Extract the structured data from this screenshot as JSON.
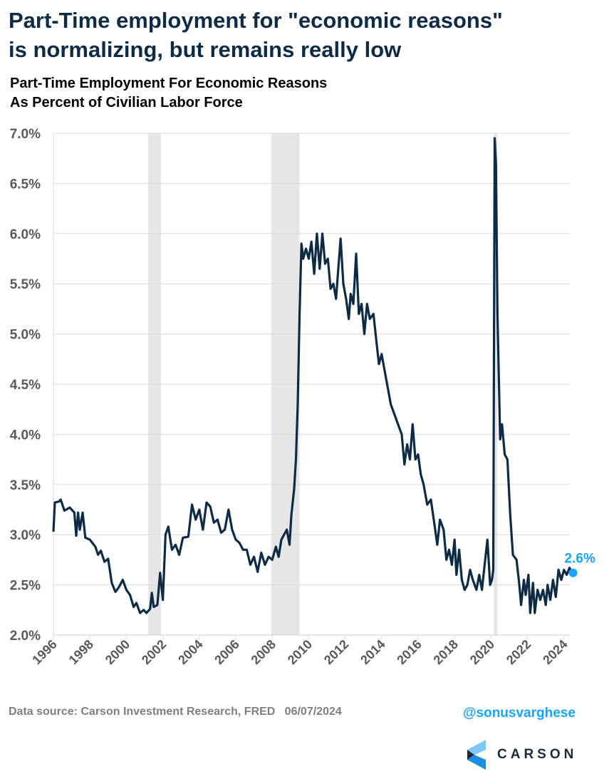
{
  "header": {
    "title_line1": "Part-Time employment for \"economic reasons\"",
    "title_line2": "is normalizing, but remains really low"
  },
  "footer": {
    "source": "Data source: Carson Investment Research, FRED   06/07/2024",
    "handle": "@sonusvarghese",
    "logo_text": "CARSON"
  },
  "colors": {
    "line": "#0d2b45",
    "accent": "#1aa3ff",
    "recession": "#e6e6e6",
    "grid": "#d9d9d9"
  },
  "chart_data": {
    "type": "line",
    "title_line1": "Part-Time Employment For Economic Reasons",
    "title_line2": "As Percent of Civilian Labor Force",
    "ylim": [
      2.0,
      7.0
    ],
    "xlim": [
      1996,
      2024.5
    ],
    "yticks": [
      "2.0%",
      "2.5%",
      "3.0%",
      "3.5%",
      "4.0%",
      "4.5%",
      "5.0%",
      "5.5%",
      "6.0%",
      "6.5%",
      "7.0%"
    ],
    "ytick_values": [
      2.0,
      2.5,
      3.0,
      3.5,
      4.0,
      4.5,
      5.0,
      5.5,
      6.0,
      6.5,
      7.0
    ],
    "xticks": [
      "1996",
      "1998",
      "2000",
      "2002",
      "2004",
      "2006",
      "2008",
      "2010",
      "2012",
      "2014",
      "2016",
      "2018",
      "2020",
      "2022",
      "2024"
    ],
    "grid": "horizontal",
    "recessions": [
      [
        2001.2,
        2001.9
      ],
      [
        2007.95,
        2009.5
      ],
      [
        2020.15,
        2020.35
      ]
    ],
    "last_label": "2.6%",
    "last_value": 2.62,
    "points": [
      [
        1996.0,
        3.03
      ],
      [
        1996.08,
        3.32
      ],
      [
        1996.3,
        3.33
      ],
      [
        1996.4,
        3.35
      ],
      [
        1996.6,
        3.24
      ],
      [
        1996.9,
        3.27
      ],
      [
        1997.15,
        3.22
      ],
      [
        1997.25,
        2.99
      ],
      [
        1997.35,
        3.22
      ],
      [
        1997.45,
        3.05
      ],
      [
        1997.6,
        3.22
      ],
      [
        1997.75,
        2.97
      ],
      [
        1998.0,
        2.95
      ],
      [
        1998.3,
        2.88
      ],
      [
        1998.45,
        2.8
      ],
      [
        1998.6,
        2.84
      ],
      [
        1998.8,
        2.73
      ],
      [
        1999.0,
        2.76
      ],
      [
        1999.2,
        2.52
      ],
      [
        1999.4,
        2.43
      ],
      [
        1999.6,
        2.48
      ],
      [
        1999.8,
        2.55
      ],
      [
        2000.0,
        2.45
      ],
      [
        2000.2,
        2.4
      ],
      [
        2000.4,
        2.28
      ],
      [
        2000.55,
        2.32
      ],
      [
        2000.75,
        2.22
      ],
      [
        2000.95,
        2.25
      ],
      [
        2001.1,
        2.22
      ],
      [
        2001.3,
        2.26
      ],
      [
        2001.4,
        2.42
      ],
      [
        2001.5,
        2.28
      ],
      [
        2001.7,
        2.3
      ],
      [
        2001.85,
        2.62
      ],
      [
        2002.0,
        2.35
      ],
      [
        2002.15,
        3.0
      ],
      [
        2002.3,
        3.08
      ],
      [
        2002.5,
        2.85
      ],
      [
        2002.7,
        2.9
      ],
      [
        2002.9,
        2.8
      ],
      [
        2003.1,
        2.97
      ],
      [
        2003.4,
        2.98
      ],
      [
        2003.6,
        3.3
      ],
      [
        2003.8,
        3.15
      ],
      [
        2004.0,
        3.25
      ],
      [
        2004.2,
        3.05
      ],
      [
        2004.4,
        3.32
      ],
      [
        2004.6,
        3.28
      ],
      [
        2004.8,
        3.12
      ],
      [
        2005.0,
        3.15
      ],
      [
        2005.2,
        3.02
      ],
      [
        2005.4,
        3.05
      ],
      [
        2005.6,
        3.25
      ],
      [
        2005.8,
        3.05
      ],
      [
        2006.0,
        2.95
      ],
      [
        2006.2,
        2.92
      ],
      [
        2006.4,
        2.85
      ],
      [
        2006.6,
        2.85
      ],
      [
        2006.8,
        2.7
      ],
      [
        2007.0,
        2.78
      ],
      [
        2007.2,
        2.63
      ],
      [
        2007.4,
        2.82
      ],
      [
        2007.6,
        2.7
      ],
      [
        2007.8,
        2.78
      ],
      [
        2008.0,
        2.75
      ],
      [
        2008.2,
        2.88
      ],
      [
        2008.35,
        2.78
      ],
      [
        2008.5,
        2.95
      ],
      [
        2008.65,
        3.0
      ],
      [
        2008.8,
        3.05
      ],
      [
        2008.95,
        2.9
      ],
      [
        2009.05,
        3.2
      ],
      [
        2009.2,
        3.45
      ],
      [
        2009.3,
        3.75
      ],
      [
        2009.4,
        4.3
      ],
      [
        2009.5,
        5.2
      ],
      [
        2009.6,
        5.9
      ],
      [
        2009.7,
        5.75
      ],
      [
        2009.85,
        5.85
      ],
      [
        2010.0,
        5.75
      ],
      [
        2010.15,
        5.92
      ],
      [
        2010.3,
        5.6
      ],
      [
        2010.45,
        6.0
      ],
      [
        2010.6,
        5.65
      ],
      [
        2010.75,
        6.0
      ],
      [
        2010.9,
        5.7
      ],
      [
        2011.05,
        5.75
      ],
      [
        2011.2,
        5.45
      ],
      [
        2011.35,
        5.5
      ],
      [
        2011.5,
        5.35
      ],
      [
        2011.6,
        5.6
      ],
      [
        2011.75,
        5.95
      ],
      [
        2011.9,
        5.5
      ],
      [
        2012.05,
        5.35
      ],
      [
        2012.2,
        5.15
      ],
      [
        2012.3,
        5.4
      ],
      [
        2012.45,
        5.3
      ],
      [
        2012.6,
        5.8
      ],
      [
        2012.75,
        5.2
      ],
      [
        2012.9,
        5.3
      ],
      [
        2013.05,
        5.0
      ],
      [
        2013.2,
        5.3
      ],
      [
        2013.35,
        5.15
      ],
      [
        2013.55,
        5.2
      ],
      [
        2013.7,
        4.95
      ],
      [
        2013.85,
        4.7
      ],
      [
        2014.0,
        4.8
      ],
      [
        2014.15,
        4.65
      ],
      [
        2014.3,
        4.5
      ],
      [
        2014.5,
        4.3
      ],
      [
        2014.7,
        4.2
      ],
      [
        2014.9,
        4.1
      ],
      [
        2015.1,
        4.0
      ],
      [
        2015.25,
        3.7
      ],
      [
        2015.4,
        3.9
      ],
      [
        2015.55,
        3.75
      ],
      [
        2015.7,
        4.1
      ],
      [
        2015.85,
        3.75
      ],
      [
        2016.0,
        3.8
      ],
      [
        2016.15,
        3.6
      ],
      [
        2016.3,
        3.5
      ],
      [
        2016.5,
        3.3
      ],
      [
        2016.7,
        3.35
      ],
      [
        2016.9,
        3.1
      ],
      [
        2017.05,
        2.9
      ],
      [
        2017.2,
        3.15
      ],
      [
        2017.4,
        3.05
      ],
      [
        2017.55,
        2.75
      ],
      [
        2017.7,
        2.85
      ],
      [
        2017.85,
        2.7
      ],
      [
        2018.0,
        2.95
      ],
      [
        2018.1,
        2.6
      ],
      [
        2018.25,
        2.85
      ],
      [
        2018.4,
        2.55
      ],
      [
        2018.55,
        2.45
      ],
      [
        2018.7,
        2.5
      ],
      [
        2018.85,
        2.65
      ],
      [
        2019.0,
        2.55
      ],
      [
        2019.2,
        2.45
      ],
      [
        2019.35,
        2.6
      ],
      [
        2019.5,
        2.45
      ],
      [
        2019.65,
        2.7
      ],
      [
        2019.8,
        2.95
      ],
      [
        2019.95,
        2.5
      ],
      [
        2020.05,
        2.55
      ],
      [
        2020.12,
        2.65
      ],
      [
        2020.2,
        6.95
      ],
      [
        2020.27,
        6.7
      ],
      [
        2020.35,
        5.2
      ],
      [
        2020.5,
        3.95
      ],
      [
        2020.6,
        4.1
      ],
      [
        2020.75,
        3.8
      ],
      [
        2020.9,
        3.75
      ],
      [
        2021.05,
        3.2
      ],
      [
        2021.2,
        2.8
      ],
      [
        2021.4,
        2.75
      ],
      [
        2021.55,
        2.5
      ],
      [
        2021.65,
        2.3
      ],
      [
        2021.8,
        2.55
      ],
      [
        2021.9,
        2.4
      ],
      [
        2022.05,
        2.6
      ],
      [
        2022.15,
        2.22
      ],
      [
        2022.3,
        2.52
      ],
      [
        2022.4,
        2.22
      ],
      [
        2022.55,
        2.45
      ],
      [
        2022.7,
        2.35
      ],
      [
        2022.85,
        2.45
      ],
      [
        2023.0,
        2.3
      ],
      [
        2023.1,
        2.5
      ],
      [
        2023.25,
        2.35
      ],
      [
        2023.4,
        2.55
      ],
      [
        2023.55,
        2.38
      ],
      [
        2023.7,
        2.65
      ],
      [
        2023.85,
        2.55
      ],
      [
        2024.0,
        2.65
      ],
      [
        2024.15,
        2.6
      ],
      [
        2024.3,
        2.67
      ],
      [
        2024.42,
        2.62
      ]
    ]
  }
}
